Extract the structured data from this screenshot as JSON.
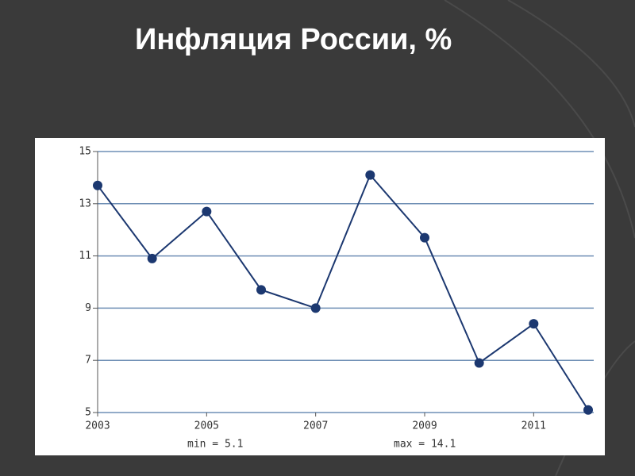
{
  "chart_data": {
    "type": "line",
    "title": "Инфляция России, %",
    "x": [
      2003,
      2004,
      2005,
      2006,
      2007,
      2008,
      2009,
      2010,
      2011,
      2012
    ],
    "values": [
      13.7,
      10.9,
      12.7,
      9.7,
      9.0,
      14.1,
      11.7,
      6.9,
      8.4,
      5.1
    ],
    "color": "#1c3870",
    "xlim": [
      2003,
      2012
    ],
    "xticks": [
      2003,
      2005,
      2007,
      2009,
      2011
    ],
    "ylim": [
      5,
      15
    ],
    "yticks": [
      5,
      7,
      9,
      11,
      13,
      15
    ],
    "grid": true,
    "annotations": [
      "min = 5.1",
      "max = 14.1"
    ]
  }
}
